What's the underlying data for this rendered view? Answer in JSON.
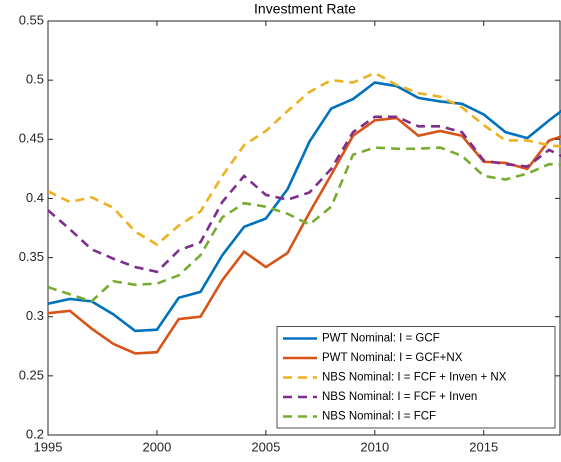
{
  "chart_data": {
    "type": "line",
    "title": "Investment Rate",
    "x": [
      1995,
      1996,
      1997,
      1998,
      1999,
      2000,
      2001,
      2002,
      2003,
      2004,
      2005,
      2006,
      2007,
      2008,
      2009,
      2010,
      2011,
      2012,
      2013,
      2014,
      2015,
      2016,
      2017,
      2018,
      2019
    ],
    "xlim": [
      1995,
      2018.5
    ],
    "xticks": [
      1995,
      2000,
      2005,
      2010,
      2015
    ],
    "ylim": [
      0.2,
      0.55
    ],
    "yticks": [
      0.2,
      0.25,
      0.3,
      0.35,
      0.4,
      0.45,
      0.5,
      0.55
    ],
    "grid": false,
    "legend_position": "lower-right",
    "series": [
      {
        "name": "PWT Nominal: I = GCF",
        "color": "#0072BD",
        "style": "solid",
        "values": [
          0.311,
          0.315,
          0.313,
          0.302,
          0.288,
          0.289,
          0.316,
          0.321,
          0.352,
          0.376,
          0.383,
          0.408,
          0.448,
          0.476,
          0.484,
          0.498,
          0.495,
          0.485,
          0.482,
          0.48,
          0.471,
          0.456,
          0.451,
          0.466,
          0.48
        ]
      },
      {
        "name": "PWT Nominal: I = GCF+NX",
        "color": "#D95319",
        "style": "solid",
        "values": [
          0.303,
          0.305,
          0.29,
          0.277,
          0.269,
          0.27,
          0.298,
          0.3,
          0.331,
          0.355,
          0.342,
          0.354,
          0.388,
          0.42,
          0.453,
          0.466,
          0.468,
          0.453,
          0.457,
          0.453,
          0.431,
          0.43,
          0.425,
          0.449,
          0.455
        ]
      },
      {
        "name": "NBS Nominal: I = FCF + Inven + NX",
        "color": "#EDB120",
        "style": "dashed",
        "values": [
          0.406,
          0.397,
          0.401,
          0.392,
          0.372,
          0.361,
          0.377,
          0.389,
          0.419,
          0.445,
          0.457,
          0.474,
          0.49,
          0.5,
          0.498,
          0.506,
          0.496,
          0.489,
          0.486,
          0.477,
          0.462,
          0.449,
          0.449,
          0.445,
          0.443
        ]
      },
      {
        "name": "NBS Nominal: I = FCF + Inven",
        "color": "#7E2F8E",
        "style": "dashed",
        "values": [
          0.39,
          0.374,
          0.357,
          0.349,
          0.342,
          0.338,
          0.356,
          0.363,
          0.397,
          0.419,
          0.403,
          0.399,
          0.405,
          0.425,
          0.456,
          0.469,
          0.469,
          0.461,
          0.461,
          0.456,
          0.432,
          0.429,
          0.427,
          0.441,
          0.432
        ]
      },
      {
        "name": "NBS Nominal: I = FCF",
        "color": "#77AC30",
        "style": "dashed",
        "values": [
          0.325,
          0.319,
          0.313,
          0.33,
          0.327,
          0.328,
          0.335,
          0.352,
          0.384,
          0.396,
          0.393,
          0.387,
          0.378,
          0.393,
          0.437,
          0.443,
          0.442,
          0.442,
          0.443,
          0.436,
          0.419,
          0.416,
          0.421,
          0.429,
          0.428
        ]
      }
    ]
  }
}
